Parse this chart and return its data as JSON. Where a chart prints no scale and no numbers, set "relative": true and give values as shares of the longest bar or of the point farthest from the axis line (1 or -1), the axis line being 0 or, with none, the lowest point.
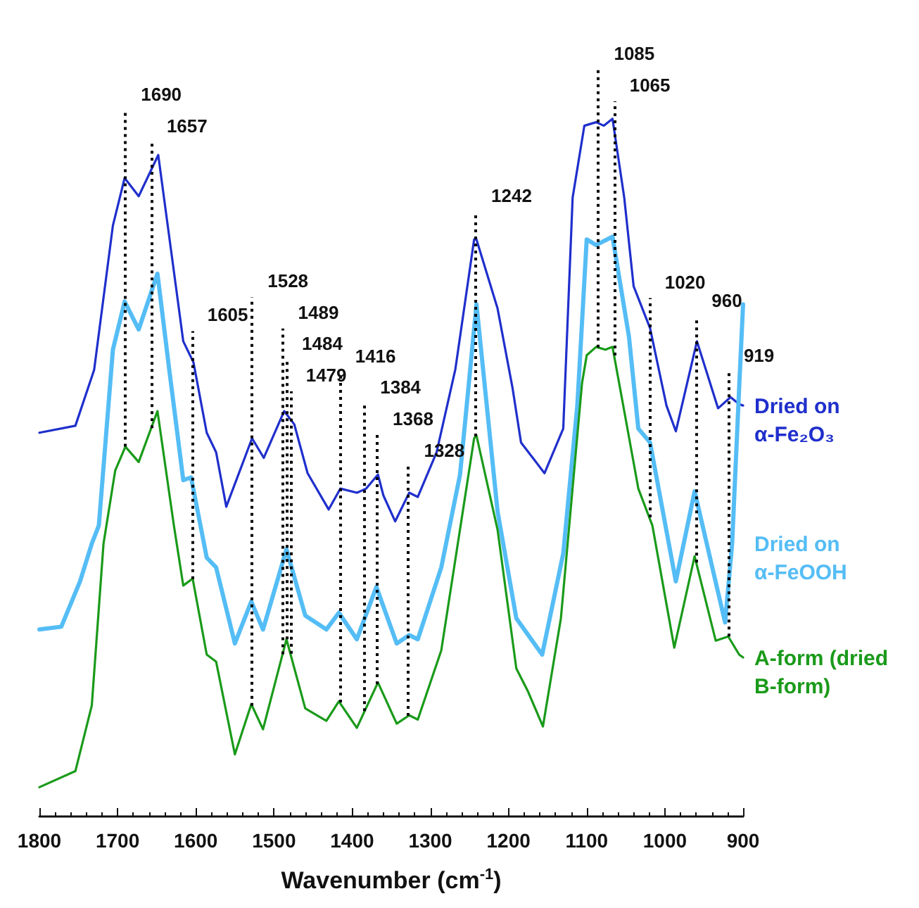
{
  "chart_data": {
    "type": "line",
    "relative": true,
    "xlabel": "Wavenumber (cm$^{-1}$)",
    "xlim": [
      1800,
      900
    ],
    "xticks": [
      1800,
      1700,
      1600,
      1500,
      1400,
      1300,
      1200,
      1100,
      1000,
      900
    ],
    "series": [
      {
        "name": "Dried on α-Fe₂O₃",
        "color": "#1f2fcc",
        "x": [
          1800,
          1754,
          1730,
          1706,
          1691,
          1673,
          1648,
          1616,
          1603,
          1586,
          1574,
          1561,
          1528,
          1513,
          1487,
          1474,
          1457,
          1430,
          1415,
          1394,
          1382,
          1367,
          1360,
          1345,
          1327,
          1316,
          1292,
          1268,
          1244,
          1241,
          1214,
          1195,
          1184,
          1154,
          1130,
          1118,
          1103,
          1088,
          1078,
          1067,
          1052,
          1040,
          1019,
          998,
          986,
          959,
          932,
          916,
          905,
          900
        ],
        "values": [
          0.55,
          0.56,
          0.64,
          0.847,
          0.915,
          0.889,
          0.948,
          0.681,
          0.651,
          0.55,
          0.522,
          0.444,
          0.542,
          0.514,
          0.581,
          0.562,
          0.492,
          0.44,
          0.47,
          0.464,
          0.47,
          0.49,
          0.46,
          0.423,
          0.464,
          0.458,
          0.522,
          0.641,
          0.827,
          0.827,
          0.728,
          0.615,
          0.536,
          0.492,
          0.556,
          0.887,
          0.99,
          0.995,
          0.99,
          1.0,
          0.887,
          0.76,
          0.7,
          0.589,
          0.552,
          0.681,
          0.585,
          0.601,
          0.591,
          0.589
        ]
      },
      {
        "name": "Dried on α-FeOOH",
        "color": "#55bdf5",
        "x": [
          1800,
          1772,
          1748,
          1733,
          1724,
          1706,
          1691,
          1673,
          1649,
          1634,
          1616,
          1606,
          1586,
          1574,
          1550,
          1529,
          1514,
          1484,
          1460,
          1433,
          1417,
          1394,
          1369,
          1343,
          1327,
          1316,
          1286,
          1262,
          1241,
          1214,
          1190,
          1157,
          1130,
          1112,
          1100,
          1088,
          1067,
          1046,
          1034,
          1019,
          986,
          962,
          923,
          914,
          905,
          900
        ],
        "values": [
          0.268,
          0.272,
          0.337,
          0.391,
          0.417,
          0.669,
          0.738,
          0.698,
          0.778,
          0.641,
          0.482,
          0.486,
          0.371,
          0.357,
          0.248,
          0.308,
          0.268,
          0.383,
          0.288,
          0.268,
          0.292,
          0.254,
          0.329,
          0.248,
          0.26,
          0.254,
          0.357,
          0.49,
          0.734,
          0.437,
          0.284,
          0.232,
          0.377,
          0.589,
          0.827,
          0.819,
          0.831,
          0.688,
          0.556,
          0.536,
          0.337,
          0.466,
          0.278,
          0.391,
          0.615,
          0.734
        ]
      },
      {
        "name": "A-form (dried B-form)",
        "color": "#1a9a1a",
        "x": [
          1800,
          1754,
          1733,
          1718,
          1703,
          1690,
          1673,
          1649,
          1628,
          1616,
          1604,
          1586,
          1574,
          1550,
          1529,
          1514,
          1484,
          1460,
          1433,
          1417,
          1394,
          1367,
          1343,
          1327,
          1316,
          1286,
          1244,
          1241,
          1214,
          1190,
          1175,
          1156,
          1133,
          1106,
          1100,
          1088,
          1076,
          1067,
          1052,
          1034,
          1016,
          988,
          962,
          935,
          919,
          905,
          900
        ],
        "values": [
          0.042,
          0.065,
          0.159,
          0.391,
          0.496,
          0.53,
          0.508,
          0.581,
          0.417,
          0.331,
          0.341,
          0.232,
          0.222,
          0.089,
          0.161,
          0.125,
          0.254,
          0.155,
          0.137,
          0.165,
          0.127,
          0.192,
          0.133,
          0.145,
          0.139,
          0.238,
          0.542,
          0.546,
          0.411,
          0.212,
          0.179,
          0.129,
          0.284,
          0.621,
          0.661,
          0.673,
          0.669,
          0.673,
          0.581,
          0.47,
          0.417,
          0.242,
          0.373,
          0.252,
          0.258,
          0.232,
          0.228
        ]
      }
    ],
    "ref_lines": [
      {
        "axis": "x",
        "value": 1690,
        "label": "1690",
        "color": "#000000",
        "line_style": "dotted"
      },
      {
        "axis": "x",
        "value": 1657,
        "label": "1657",
        "color": "#000000",
        "line_style": "dotted"
      },
      {
        "axis": "x",
        "value": 1605,
        "label": "1605",
        "color": "#000000",
        "line_style": "dotted"
      },
      {
        "axis": "x",
        "value": 1528,
        "label": "1528",
        "color": "#000000",
        "line_style": "dotted"
      },
      {
        "axis": "x",
        "value": 1489,
        "label": "1489",
        "color": "#000000",
        "line_style": "dotted"
      },
      {
        "axis": "x",
        "value": 1484,
        "label": "1484",
        "color": "#000000",
        "line_style": "dotted"
      },
      {
        "axis": "x",
        "value": 1479,
        "label": "1479",
        "color": "#000000",
        "line_style": "dotted"
      },
      {
        "axis": "x",
        "value": 1416,
        "label": "1416",
        "color": "#000000",
        "line_style": "dotted"
      },
      {
        "axis": "x",
        "value": 1384,
        "label": "1384",
        "color": "#000000",
        "line_style": "dotted"
      },
      {
        "axis": "x",
        "value": 1368,
        "label": "1368",
        "color": "#000000",
        "line_style": "dotted"
      },
      {
        "axis": "x",
        "value": 1328,
        "label": "1328",
        "color": "#000000",
        "line_style": "dotted"
      },
      {
        "axis": "x",
        "value": 1242,
        "label": "1242",
        "color": "#000000",
        "line_style": "dotted"
      },
      {
        "axis": "x",
        "value": 1085,
        "label": "1085",
        "color": "#000000",
        "line_style": "dotted"
      },
      {
        "axis": "x",
        "value": 1065,
        "label": "1065",
        "color": "#000000",
        "line_style": "dotted"
      },
      {
        "axis": "x",
        "value": 1020,
        "label": "1020",
        "color": "#000000",
        "line_style": "dotted"
      },
      {
        "axis": "x",
        "value": 960,
        "label": "960",
        "color": "#000000",
        "line_style": "dotted"
      },
      {
        "axis": "x",
        "value": 919,
        "label": "919",
        "color": "#000000",
        "line_style": "dotted"
      }
    ]
  }
}
